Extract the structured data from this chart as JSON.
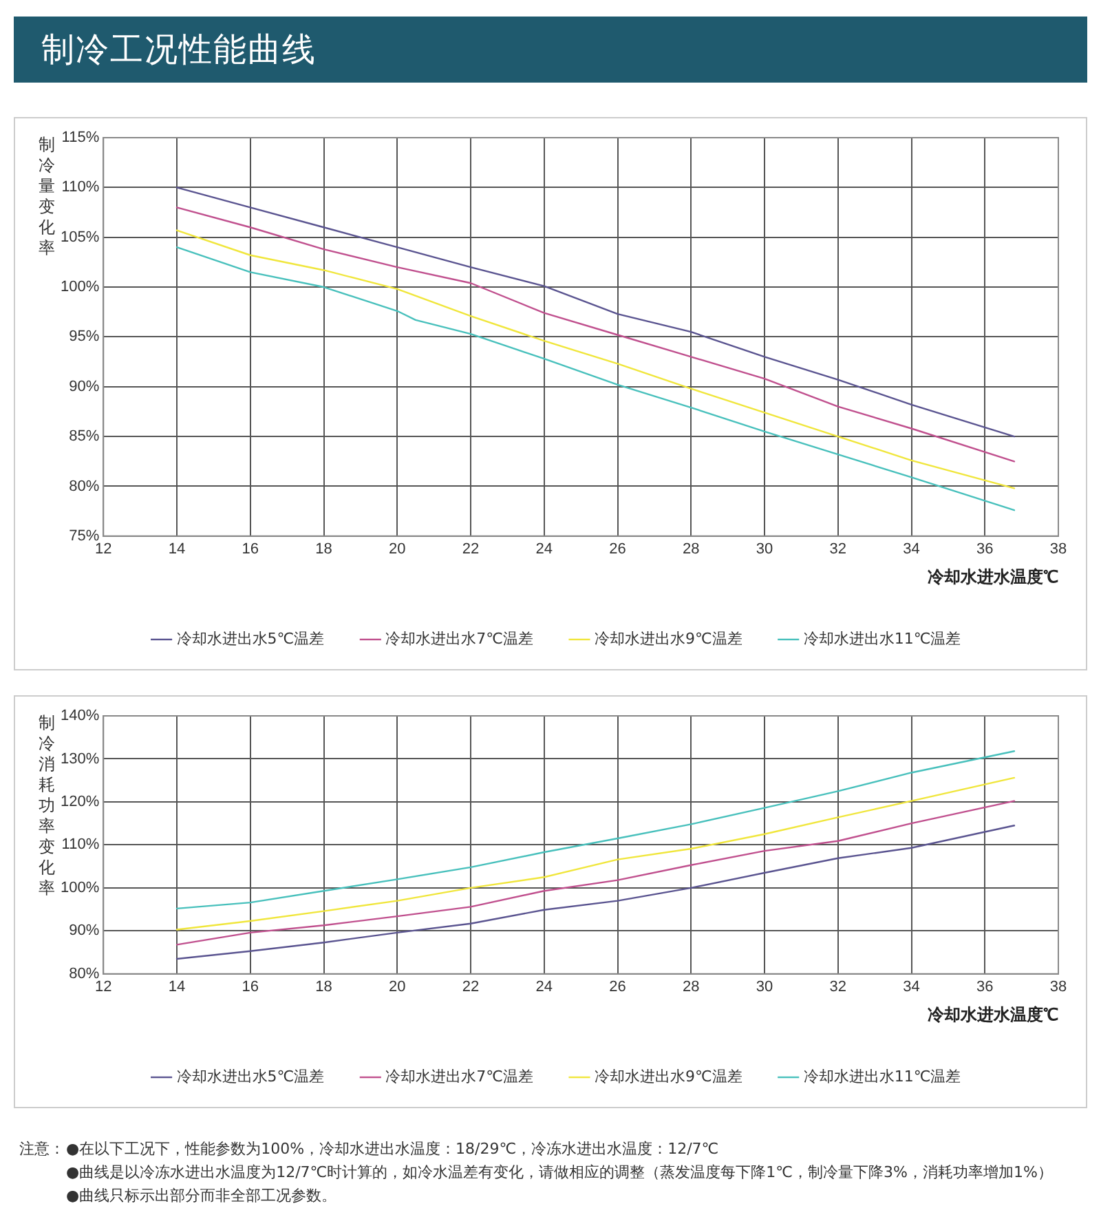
{
  "chart_data": [
    {
      "type": "line",
      "title": "制冷工况性能曲线",
      "ylabel": "制冷量变化率",
      "xlabel": "冷却水进水温度℃",
      "xlim": [
        12,
        38
      ],
      "xticks": [
        12,
        14,
        16,
        18,
        20,
        22,
        24,
        26,
        28,
        30,
        32,
        34,
        36,
        38
      ],
      "ylim": [
        75,
        115
      ],
      "yticks": [
        {
          "value": 75,
          "label": "75%"
        },
        {
          "value": 80,
          "label": "80%"
        },
        {
          "value": 85,
          "label": "85%"
        },
        {
          "value": 90,
          "label": "90%"
        },
        {
          "value": 95,
          "label": "95%"
        },
        {
          "value": 100,
          "label": "100%"
        },
        {
          "value": 105,
          "label": "105%"
        },
        {
          "value": 110,
          "label": "110%"
        },
        {
          "value": 115,
          "label": "115%"
        }
      ],
      "grid": true,
      "legend": "bottom",
      "marker": "none",
      "line_style": "solid",
      "series": [
        {
          "name": "冷却水进出水5℃温差",
          "color": "#5a5490",
          "x": [
            14,
            16,
            18,
            20,
            22,
            24,
            26,
            28,
            30,
            32,
            34,
            36.8
          ],
          "values": [
            110,
            108,
            106,
            104,
            102,
            100.1,
            97.3,
            95.5,
            93,
            90.7,
            88.2,
            85
          ]
        },
        {
          "name": "冷却水进出水7℃温差",
          "color": "#c0508e",
          "x": [
            14,
            16,
            18,
            20,
            22,
            24,
            26,
            28,
            30,
            32,
            34,
            36.8
          ],
          "values": [
            108,
            106,
            103.8,
            102,
            100.4,
            97.4,
            95.2,
            93,
            90.8,
            88,
            85.8,
            82.5
          ]
        },
        {
          "name": "冷却水进出水9℃温差",
          "color": "#f0e63c",
          "x": [
            14,
            16,
            18,
            20,
            22,
            24,
            26,
            28,
            30,
            32,
            34,
            36.8
          ],
          "values": [
            105.7,
            103.2,
            101.7,
            99.8,
            97.1,
            94.6,
            92.3,
            89.8,
            87.4,
            85,
            82.6,
            79.8
          ]
        },
        {
          "name": "冷却水进出水11℃温差",
          "color": "#48c0bc",
          "x": [
            14,
            16,
            18,
            20,
            20.5,
            22,
            24,
            26,
            28,
            30,
            32,
            34,
            36.8
          ],
          "values": [
            104,
            101.5,
            100,
            97.6,
            96.7,
            95.3,
            92.8,
            90.2,
            87.9,
            85.5,
            83.2,
            80.9,
            77.6
          ]
        }
      ]
    },
    {
      "type": "line",
      "ylabel": "制冷消耗功率变化率",
      "xlabel": "冷却水进水温度℃",
      "xlim": [
        12,
        38
      ],
      "xticks": [
        12,
        14,
        16,
        18,
        20,
        22,
        24,
        26,
        28,
        30,
        32,
        34,
        36,
        38
      ],
      "ylim": [
        80,
        140
      ],
      "yticks": [
        {
          "value": 80,
          "label": "80%"
        },
        {
          "value": 90,
          "label": "90%"
        },
        {
          "value": 100,
          "label": "100%"
        },
        {
          "value": 110,
          "label": "110%"
        },
        {
          "value": 120,
          "label": "120%"
        },
        {
          "value": 130,
          "label": "130%"
        },
        {
          "value": 140,
          "label": "140%"
        }
      ],
      "grid": true,
      "legend": "bottom",
      "marker": "none",
      "line_style": "solid",
      "series": [
        {
          "name": "冷却水进出水5℃温差",
          "color": "#5a5490",
          "x": [
            14,
            16,
            18,
            20,
            22,
            24,
            26,
            28,
            30,
            32,
            34,
            36.8
          ],
          "values": [
            83.5,
            85.3,
            87.3,
            89.6,
            91.7,
            94.9,
            97,
            100,
            103.5,
            106.9,
            109.3,
            114.5
          ]
        },
        {
          "name": "冷却水进出水7℃温差",
          "color": "#c0508e",
          "x": [
            14,
            16,
            18,
            20,
            22,
            24,
            26,
            28,
            30,
            32,
            34,
            36.8
          ],
          "values": [
            86.8,
            89.6,
            91.3,
            93.4,
            95.6,
            99.3,
            101.8,
            105.3,
            108.6,
            110.9,
            115,
            120.2
          ]
        },
        {
          "name": "冷却水进出水9℃温差",
          "color": "#f0e63c",
          "x": [
            14,
            16,
            18,
            20,
            22,
            24,
            26,
            28,
            30,
            32,
            34,
            36.8
          ],
          "values": [
            90.3,
            92.3,
            94.6,
            97,
            100,
            102.5,
            106.6,
            109.1,
            112.5,
            116.4,
            120.2,
            125.6
          ]
        },
        {
          "name": "冷却水进出水11℃温差",
          "color": "#48c0bc",
          "x": [
            14,
            16,
            18,
            20,
            22,
            24,
            26,
            28,
            30,
            32,
            34,
            36.8
          ],
          "values": [
            95.2,
            96.6,
            99.3,
            102,
            104.8,
            108.3,
            111.5,
            114.8,
            118.6,
            122.5,
            126.8,
            131.8
          ]
        }
      ],
      "annotations": [
        "注意：",
        "●在以下工况下，性能参数为100%，冷却水进出水温度：18/29℃，冷冻水进出水温度：12/7℃",
        "●曲线是以冷冻水进出水温度为12/7℃时计算的，如冷水温差有变化，请做相应的调整（蒸发温度每下降1℃，制冷量下降3%，消耗功率增加1%）",
        "●曲线只标示出部分而非全部工况参数。"
      ]
    }
  ]
}
